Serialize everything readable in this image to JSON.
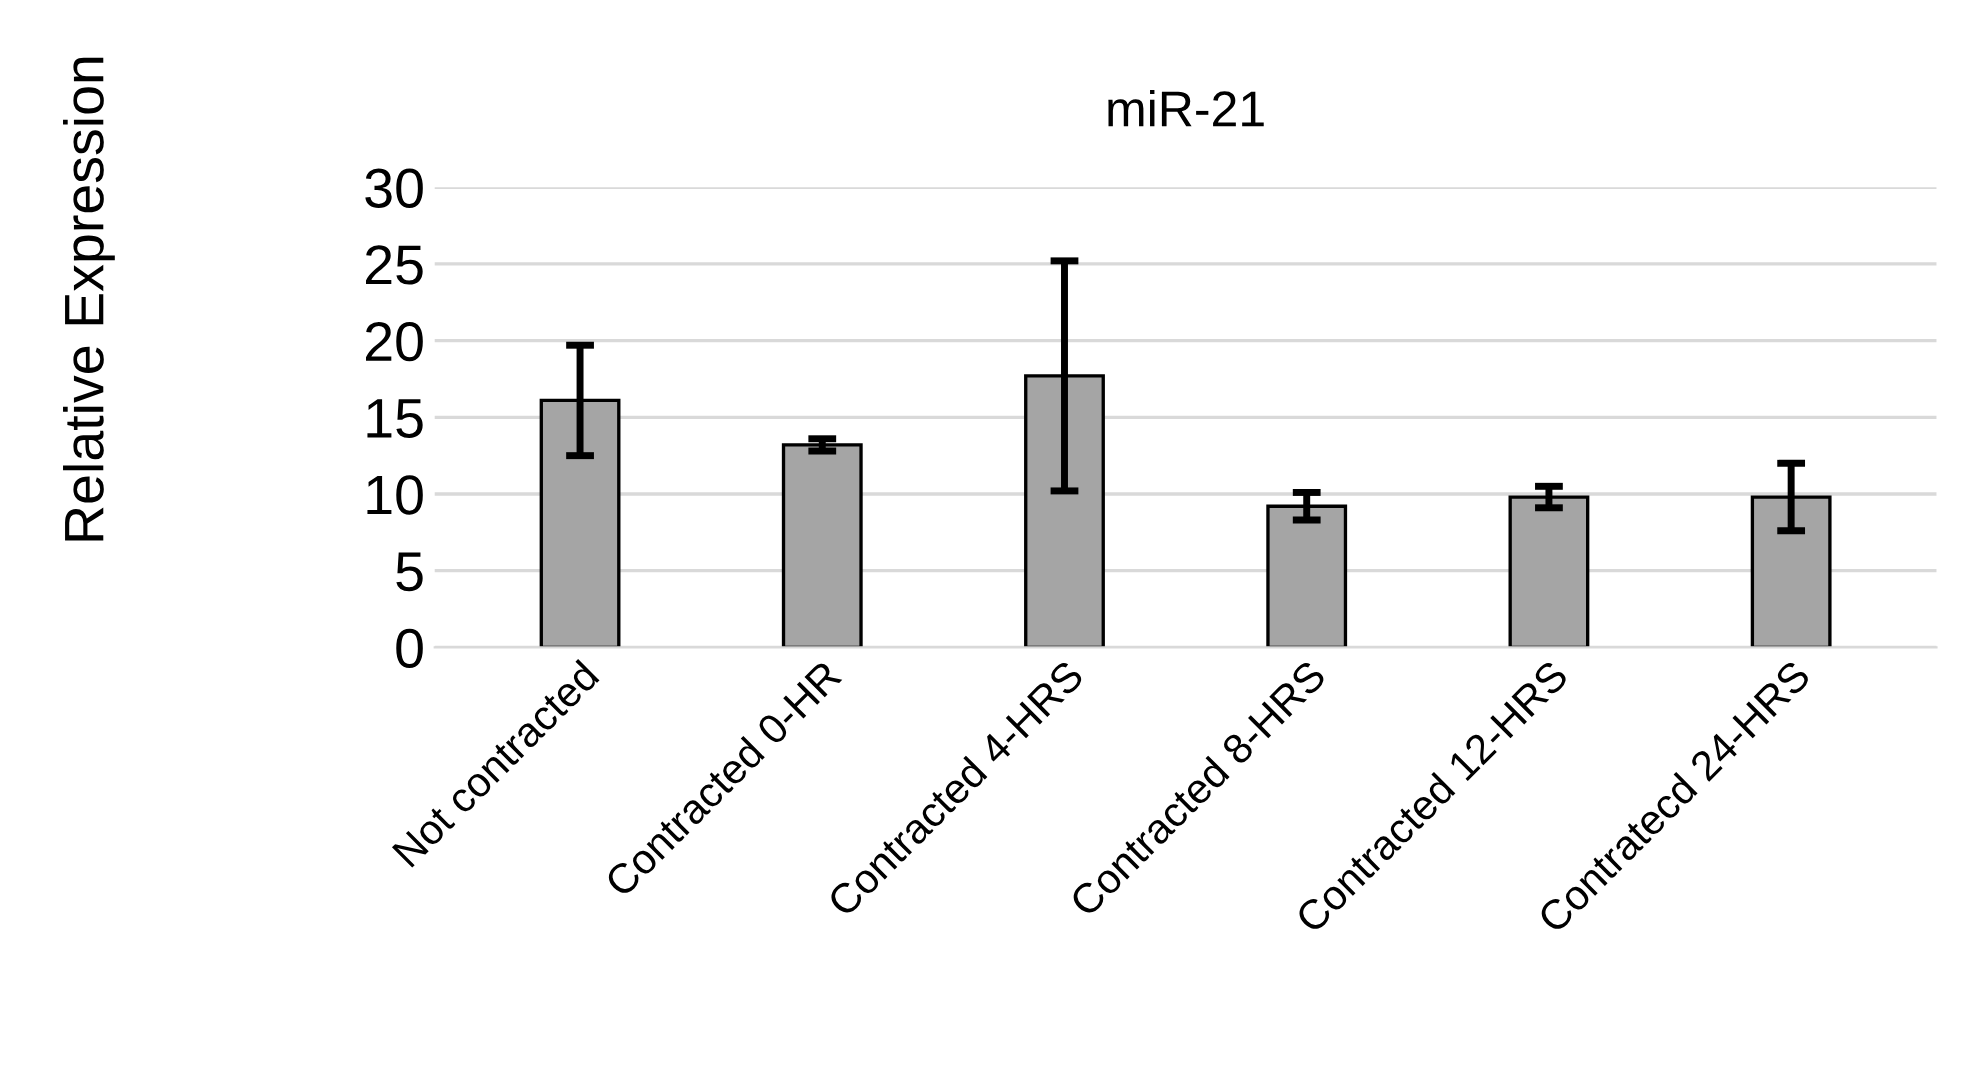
{
  "chart_data": {
    "type": "bar",
    "title": "miR-21",
    "ylabel": "Relative Expression",
    "categories": [
      "Not contracted",
      "Contracted 0-HR",
      "Contracted 4-HRS",
      "Contracted 8-HRS",
      "Contracted 12-HRS",
      "Contratecd 24-HRS"
    ],
    "values": [
      16.1,
      13.2,
      17.7,
      9.2,
      9.8,
      9.8
    ],
    "errors": [
      3.6,
      0.4,
      7.5,
      0.9,
      0.7,
      2.2
    ],
    "color": "#a5a5a5",
    "ylim": [
      0,
      30
    ],
    "yticks": [
      0,
      5,
      10,
      15,
      20,
      25,
      30
    ],
    "grid": "y",
    "legend": false
  }
}
